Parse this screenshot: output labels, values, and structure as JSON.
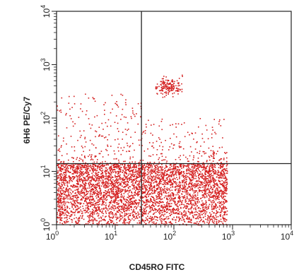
{
  "chart_data": {
    "type": "scatter",
    "title": "",
    "xlabel": "CD45RO FITC",
    "ylabel": "6H6 PE/Cy7",
    "x_scale": "log",
    "y_scale": "log",
    "xlim": [
      1,
      10000
    ],
    "ylim": [
      1,
      10000
    ],
    "x_ticks": [
      {
        "base": "10",
        "exp": "0"
      },
      {
        "base": "10",
        "exp": "1"
      },
      {
        "base": "10",
        "exp": "2"
      },
      {
        "base": "10",
        "exp": "3"
      },
      {
        "base": "10",
        "exp": "4"
      }
    ],
    "y_ticks": [
      {
        "base": "10",
        "exp": "0"
      },
      {
        "base": "10",
        "exp": "1"
      },
      {
        "base": "10",
        "exp": "2"
      },
      {
        "base": "10",
        "exp": "3"
      },
      {
        "base": "10",
        "exp": "4"
      }
    ],
    "quadrant_gates": {
      "x": 28,
      "y": 14
    },
    "grid": false,
    "legend": "none",
    "point_color": "#d42020",
    "populations": [
      {
        "role": "dense bottom band",
        "x_range": [
          1,
          800
        ],
        "y_range": [
          1,
          14
        ],
        "share": 0.85
      },
      {
        "role": "upper-left scatter",
        "x_range": [
          1,
          28
        ],
        "y_range": [
          14,
          300
        ],
        "share": 0.05
      },
      {
        "role": "upper-right scatter",
        "x_range": [
          28,
          800
        ],
        "y_range": [
          14,
          100
        ],
        "share": 0.04
      },
      {
        "role": "high cluster",
        "center": [
          80,
          400
        ],
        "share": 0.03
      }
    ]
  }
}
